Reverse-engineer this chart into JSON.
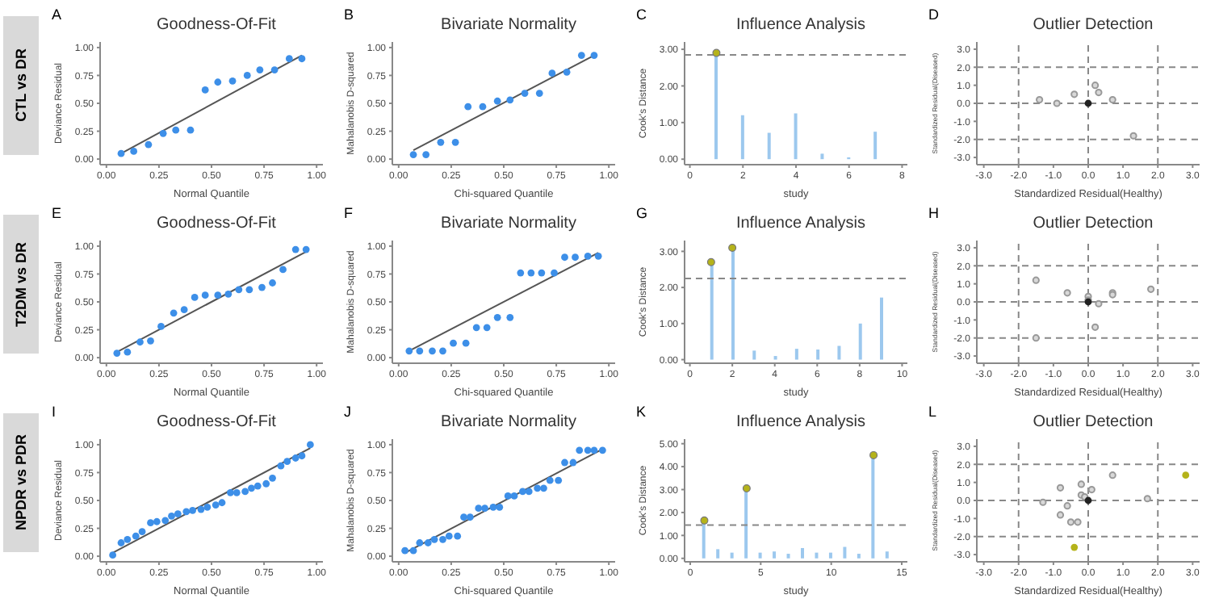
{
  "chart_data": [
    {
      "type": "scatter",
      "title": "Goodness-Of-Fit",
      "xlabel": "Normal Quantile",
      "ylabel": "Deviance Residual",
      "annotations": [
        "A",
        "CTL vs DR"
      ],
      "xlim": [
        -0.03,
        1.03
      ],
      "ylim": [
        -0.05,
        1.05
      ],
      "xticks": [
        {
          "value": 0,
          "label": "0.00"
        },
        {
          "value": 0.25,
          "label": "0.25"
        },
        {
          "value": 0.5,
          "label": "0.50"
        },
        {
          "value": 0.75,
          "label": "0.75"
        },
        {
          "value": 1,
          "label": "1.00"
        }
      ],
      "yticks": [
        {
          "value": 0,
          "label": "0.00"
        },
        {
          "value": 0.25,
          "label": "0.25"
        },
        {
          "value": 0.5,
          "label": "0.50"
        },
        {
          "value": 0.75,
          "label": "0.75"
        },
        {
          "value": 1,
          "label": "1.00"
        }
      ],
      "series": [
        {
          "type": "scatter",
          "marker": "circle",
          "color": "#3d8fe8",
          "x": [
            0.07,
            0.13,
            0.2,
            0.27,
            0.33,
            0.4,
            0.47,
            0.53,
            0.6,
            0.67,
            0.73,
            0.8,
            0.87,
            0.93
          ],
          "values": [
            0.05,
            0.07,
            0.13,
            0.23,
            0.26,
            0.26,
            0.62,
            0.69,
            0.7,
            0.75,
            0.8,
            0.8,
            0.9,
            0.9
          ]
        },
        {
          "type": "line",
          "color": "#555555",
          "x": [
            0.07,
            0.93
          ],
          "values": [
            0.05,
            0.93
          ]
        }
      ]
    },
    {
      "type": "scatter",
      "title": "Bivariate Normality",
      "xlabel": "Chi-squared Quantile",
      "ylabel": "Mahalanobis D-squared",
      "annotations": [
        "B"
      ],
      "xlim": [
        -0.03,
        1.03
      ],
      "ylim": [
        -0.05,
        1.05
      ],
      "xticks": [
        {
          "value": 0,
          "label": "0.00"
        },
        {
          "value": 0.25,
          "label": "0.25"
        },
        {
          "value": 0.5,
          "label": "0.50"
        },
        {
          "value": 0.75,
          "label": "0.75"
        },
        {
          "value": 1,
          "label": "1.00"
        }
      ],
      "yticks": [
        {
          "value": 0,
          "label": "0.00"
        },
        {
          "value": 0.25,
          "label": "0.25"
        },
        {
          "value": 0.5,
          "label": "0.50"
        },
        {
          "value": 0.75,
          "label": "0.75"
        },
        {
          "value": 1,
          "label": "1.00"
        }
      ],
      "series": [
        {
          "type": "scatter",
          "marker": "circle",
          "color": "#3d8fe8",
          "x": [
            0.07,
            0.13,
            0.2,
            0.27,
            0.33,
            0.4,
            0.47,
            0.53,
            0.6,
            0.67,
            0.73,
            0.8,
            0.87,
            0.93
          ],
          "values": [
            0.04,
            0.04,
            0.15,
            0.15,
            0.47,
            0.47,
            0.52,
            0.53,
            0.59,
            0.59,
            0.77,
            0.78,
            0.93,
            0.93
          ]
        },
        {
          "type": "line",
          "color": "#555555",
          "x": [
            0.07,
            0.93
          ],
          "values": [
            0.08,
            0.93
          ]
        }
      ]
    },
    {
      "type": "bar",
      "title": "Influence Analysis",
      "xlabel": "study",
      "ylabel": "Cook's Distance",
      "annotations": [
        "C"
      ],
      "xlim": [
        -0.2,
        8.2
      ],
      "ylim": [
        -0.15,
        3.2
      ],
      "xticks": [
        0,
        2,
        4,
        6,
        8
      ],
      "yticks": [
        {
          "value": 0,
          "label": "0.00"
        },
        {
          "value": 1,
          "label": "1.00"
        },
        {
          "value": 2,
          "label": "2.00"
        },
        {
          "value": 3,
          "label": "3.00"
        }
      ],
      "ref_lines": [
        {
          "axis": "y",
          "value": 2.85,
          "color": "#888888",
          "line_style": "dashed"
        }
      ],
      "series": [
        {
          "type": "bar",
          "color": "#9cc8ee",
          "x": [
            1,
            2,
            3,
            4,
            5,
            6,
            7
          ],
          "values": [
            2.9,
            1.2,
            0.72,
            1.25,
            0.15,
            0.05,
            0.75
          ]
        },
        {
          "type": "scatter",
          "marker": "circle",
          "color": "#b5b31a",
          "x": [
            1
          ],
          "values": [
            2.9
          ]
        }
      ]
    },
    {
      "type": "scatter",
      "title": "Outlier Detection",
      "xlabel": "Standardized Residual(Healthy)",
      "ylabel": "Standardized Residual(Diseased)",
      "annotations": [
        "D"
      ],
      "xlim": [
        -3.2,
        3.2
      ],
      "ylim": [
        -3.4,
        3.4
      ],
      "xticks": [
        {
          "value": -3,
          "label": "-3.0"
        },
        {
          "value": -2,
          "label": "-2.0"
        },
        {
          "value": -1,
          "label": "-1.0"
        },
        {
          "value": 0,
          "label": "0.0"
        },
        {
          "value": 1,
          "label": "1.0"
        },
        {
          "value": 2,
          "label": "2.0"
        },
        {
          "value": 3,
          "label": "3.0"
        }
      ],
      "yticks": [
        {
          "value": -3,
          "label": "-3.0"
        },
        {
          "value": -2,
          "label": "-2.0"
        },
        {
          "value": -1,
          "label": "-1.0"
        },
        {
          "value": 0,
          "label": "0.0"
        },
        {
          "value": 1,
          "label": "1.0"
        },
        {
          "value": 2,
          "label": "2.0"
        },
        {
          "value": 3,
          "label": "3.0"
        }
      ],
      "ref_lines": [
        {
          "axis": "x",
          "value": -2,
          "color": "#888888",
          "line_style": "dashed"
        },
        {
          "axis": "x",
          "value": 0,
          "color": "#888888",
          "line_style": "dashed"
        },
        {
          "axis": "x",
          "value": 2,
          "color": "#888888",
          "line_style": "dashed"
        },
        {
          "axis": "y",
          "value": -2,
          "color": "#888888",
          "line_style": "dashed"
        },
        {
          "axis": "y",
          "value": 0,
          "color": "#888888",
          "line_style": "dashed"
        },
        {
          "axis": "y",
          "value": 2,
          "color": "#888888",
          "line_style": "dashed"
        }
      ],
      "series": [
        {
          "type": "scatter",
          "marker": "circle",
          "color": "#999999",
          "x": [
            -1.4,
            -0.9,
            -0.4,
            0.2,
            0.3,
            0.7,
            1.3
          ],
          "values": [
            0.2,
            0,
            0.5,
            1.0,
            0.6,
            0.2,
            -1.8
          ]
        },
        {
          "type": "scatter",
          "marker": "circle",
          "color": "#222222",
          "x": [
            0
          ],
          "values": [
            0
          ]
        }
      ]
    },
    {
      "type": "scatter",
      "title": "Goodness-Of-Fit",
      "xlabel": "Normal Quantile",
      "ylabel": "Deviance Residual",
      "annotations": [
        "E",
        "T2DM vs DR"
      ],
      "xlim": [
        -0.03,
        1.03
      ],
      "ylim": [
        -0.05,
        1.05
      ],
      "xticks": [
        {
          "value": 0,
          "label": "0.00"
        },
        {
          "value": 0.25,
          "label": "0.25"
        },
        {
          "value": 0.5,
          "label": "0.50"
        },
        {
          "value": 0.75,
          "label": "0.75"
        },
        {
          "value": 1,
          "label": "1.00"
        }
      ],
      "yticks": [
        {
          "value": 0,
          "label": "0.00"
        },
        {
          "value": 0.25,
          "label": "0.25"
        },
        {
          "value": 0.5,
          "label": "0.50"
        },
        {
          "value": 0.75,
          "label": "0.75"
        },
        {
          "value": 1,
          "label": "1.00"
        }
      ],
      "series": [
        {
          "type": "scatter",
          "marker": "circle",
          "color": "#3d8fe8",
          "x": [
            0.05,
            0.1,
            0.16,
            0.21,
            0.26,
            0.32,
            0.37,
            0.42,
            0.47,
            0.53,
            0.58,
            0.63,
            0.68,
            0.74,
            0.79,
            0.84,
            0.9,
            0.95
          ],
          "values": [
            0.04,
            0.05,
            0.14,
            0.15,
            0.28,
            0.4,
            0.43,
            0.54,
            0.56,
            0.56,
            0.57,
            0.61,
            0.61,
            0.63,
            0.67,
            0.79,
            0.97,
            0.97
          ]
        },
        {
          "type": "line",
          "color": "#555555",
          "x": [
            0.05,
            0.95
          ],
          "values": [
            0.05,
            0.95
          ]
        }
      ]
    },
    {
      "type": "scatter",
      "title": "Bivariate Normality",
      "xlabel": "Chi-squared Quantile",
      "ylabel": "Mahalanobis D-squared",
      "annotations": [
        "F"
      ],
      "xlim": [
        -0.03,
        1.03
      ],
      "ylim": [
        -0.05,
        1.05
      ],
      "xticks": [
        {
          "value": 0,
          "label": "0.00"
        },
        {
          "value": 0.25,
          "label": "0.25"
        },
        {
          "value": 0.5,
          "label": "0.50"
        },
        {
          "value": 0.75,
          "label": "0.75"
        },
        {
          "value": 1,
          "label": "1.00"
        }
      ],
      "yticks": [
        {
          "value": 0,
          "label": "0.00"
        },
        {
          "value": 0.25,
          "label": "0.25"
        },
        {
          "value": 0.5,
          "label": "0.50"
        },
        {
          "value": 0.75,
          "label": "0.75"
        },
        {
          "value": 1,
          "label": "1.00"
        }
      ],
      "series": [
        {
          "type": "scatter",
          "marker": "circle",
          "color": "#3d8fe8",
          "x": [
            0.05,
            0.1,
            0.16,
            0.21,
            0.26,
            0.32,
            0.37,
            0.42,
            0.47,
            0.53,
            0.58,
            0.63,
            0.68,
            0.74,
            0.79,
            0.84,
            0.9,
            0.95
          ],
          "values": [
            0.06,
            0.06,
            0.06,
            0.06,
            0.13,
            0.13,
            0.27,
            0.27,
            0.36,
            0.36,
            0.76,
            0.76,
            0.76,
            0.76,
            0.9,
            0.9,
            0.91,
            0.91
          ]
        },
        {
          "type": "line",
          "color": "#555555",
          "x": [
            0.05,
            0.95
          ],
          "values": [
            0.06,
            0.94
          ]
        }
      ]
    },
    {
      "type": "bar",
      "title": "Influence Analysis",
      "xlabel": "study",
      "ylabel": "Cook's Distance",
      "annotations": [
        "G"
      ],
      "xlim": [
        -0.25,
        10.25
      ],
      "ylim": [
        -0.1,
        3.3
      ],
      "xticks": [
        0,
        2,
        4,
        6,
        8,
        10
      ],
      "yticks": [
        {
          "value": 0,
          "label": "0.00"
        },
        {
          "value": 1,
          "label": "1.00"
        },
        {
          "value": 2,
          "label": "2.00"
        },
        {
          "value": 3,
          "label": "3.00"
        }
      ],
      "ref_lines": [
        {
          "axis": "y",
          "value": 2.25,
          "color": "#888888",
          "line_style": "dashed"
        }
      ],
      "series": [
        {
          "type": "bar",
          "color": "#9cc8ee",
          "x": [
            1,
            2,
            3,
            4,
            5,
            6,
            7,
            8,
            9
          ],
          "values": [
            2.7,
            3.1,
            0.25,
            0.1,
            0.3,
            0.28,
            0.38,
            1.0,
            1.72
          ]
        },
        {
          "type": "scatter",
          "marker": "circle",
          "color": "#b5b31a",
          "x": [
            1,
            2
          ],
          "values": [
            2.7,
            3.1
          ]
        }
      ]
    },
    {
      "type": "scatter",
      "title": "Outlier Detection",
      "xlabel": "Standardized Residual(Healthy)",
      "ylabel": "Standardized Residual(Diseased)",
      "annotations": [
        "H"
      ],
      "xlim": [
        -3.2,
        3.2
      ],
      "ylim": [
        -3.4,
        3.4
      ],
      "xticks": [
        {
          "value": -3,
          "label": "-3.0"
        },
        {
          "value": -2,
          "label": "-2.0"
        },
        {
          "value": -1,
          "label": "-1.0"
        },
        {
          "value": 0,
          "label": "0.0"
        },
        {
          "value": 1,
          "label": "1.0"
        },
        {
          "value": 2,
          "label": "2.0"
        },
        {
          "value": 3,
          "label": "3.0"
        }
      ],
      "yticks": [
        {
          "value": -3,
          "label": "-3.0"
        },
        {
          "value": -2,
          "label": "-2.0"
        },
        {
          "value": -1,
          "label": "-1.0"
        },
        {
          "value": 0,
          "label": "0.0"
        },
        {
          "value": 1,
          "label": "1.0"
        },
        {
          "value": 2,
          "label": "2.0"
        },
        {
          "value": 3,
          "label": "3.0"
        }
      ],
      "ref_lines": [
        {
          "axis": "x",
          "value": -2,
          "color": "#888888",
          "line_style": "dashed"
        },
        {
          "axis": "x",
          "value": 0,
          "color": "#888888",
          "line_style": "dashed"
        },
        {
          "axis": "x",
          "value": 2,
          "color": "#888888",
          "line_style": "dashed"
        },
        {
          "axis": "y",
          "value": -2,
          "color": "#888888",
          "line_style": "dashed"
        },
        {
          "axis": "y",
          "value": 0,
          "color": "#888888",
          "line_style": "dashed"
        },
        {
          "axis": "y",
          "value": 2,
          "color": "#888888",
          "line_style": "dashed"
        }
      ],
      "series": [
        {
          "type": "scatter",
          "marker": "circle",
          "color": "#999999",
          "x": [
            -1.5,
            -1.5,
            -0.6,
            0,
            0,
            0.3,
            0.2,
            0.7,
            0.7,
            1.8
          ],
          "values": [
            1.2,
            -2.0,
            0.5,
            0.3,
            0.1,
            -0.1,
            -1.4,
            0.5,
            0.4,
            0.7
          ]
        },
        {
          "type": "scatter",
          "marker": "circle",
          "color": "#222222",
          "x": [
            0
          ],
          "values": [
            0
          ]
        }
      ]
    },
    {
      "type": "scatter",
      "title": "Goodness-Of-Fit",
      "xlabel": "Normal Quantile",
      "ylabel": "Deviance Residual",
      "annotations": [
        "I",
        "NPDR vs PDR"
      ],
      "xlim": [
        -0.03,
        1.03
      ],
      "ylim": [
        -0.05,
        1.05
      ],
      "xticks": [
        {
          "value": 0,
          "label": "0.00"
        },
        {
          "value": 0.25,
          "label": "0.25"
        },
        {
          "value": 0.5,
          "label": "0.50"
        },
        {
          "value": 0.75,
          "label": "0.75"
        },
        {
          "value": 1,
          "label": "1.00"
        }
      ],
      "yticks": [
        {
          "value": 0,
          "label": "0.00"
        },
        {
          "value": 0.25,
          "label": "0.25"
        },
        {
          "value": 0.5,
          "label": "0.50"
        },
        {
          "value": 0.75,
          "label": "0.75"
        },
        {
          "value": 1,
          "label": "1.00"
        }
      ],
      "series": [
        {
          "type": "scatter",
          "marker": "circle",
          "color": "#3d8fe8",
          "x": [
            0.03,
            0.07,
            0.1,
            0.14,
            0.17,
            0.21,
            0.24,
            0.28,
            0.31,
            0.34,
            0.38,
            0.41,
            0.45,
            0.48,
            0.52,
            0.55,
            0.59,
            0.62,
            0.66,
            0.69,
            0.72,
            0.76,
            0.79,
            0.83,
            0.86,
            0.9,
            0.93,
            0.97
          ],
          "values": [
            0.01,
            0.12,
            0.15,
            0.18,
            0.22,
            0.3,
            0.31,
            0.32,
            0.36,
            0.38,
            0.4,
            0.41,
            0.42,
            0.44,
            0.46,
            0.48,
            0.57,
            0.57,
            0.58,
            0.61,
            0.63,
            0.65,
            0.7,
            0.81,
            0.85,
            0.88,
            0.9,
            1.0
          ]
        },
        {
          "type": "line",
          "color": "#555555",
          "x": [
            0.03,
            0.97
          ],
          "values": [
            0.03,
            0.97
          ]
        }
      ]
    },
    {
      "type": "scatter",
      "title": "Bivariate Normality",
      "xlabel": "Chi-squared Quantile",
      "ylabel": "Mahalanobis D-squared",
      "annotations": [
        "J"
      ],
      "xlim": [
        -0.03,
        1.03
      ],
      "ylim": [
        -0.05,
        1.05
      ],
      "xticks": [
        {
          "value": 0,
          "label": "0.00"
        },
        {
          "value": 0.25,
          "label": "0.25"
        },
        {
          "value": 0.5,
          "label": "0.50"
        },
        {
          "value": 0.75,
          "label": "0.75"
        },
        {
          "value": 1,
          "label": "1.00"
        }
      ],
      "yticks": [
        {
          "value": 0,
          "label": "0.00"
        },
        {
          "value": 0.25,
          "label": "0.25"
        },
        {
          "value": 0.5,
          "label": "0.50"
        },
        {
          "value": 0.75,
          "label": "0.75"
        },
        {
          "value": 1,
          "label": "1.00"
        }
      ],
      "series": [
        {
          "type": "scatter",
          "marker": "circle",
          "color": "#3d8fe8",
          "x": [
            0.03,
            0.07,
            0.1,
            0.14,
            0.17,
            0.21,
            0.24,
            0.28,
            0.31,
            0.34,
            0.38,
            0.41,
            0.45,
            0.48,
            0.52,
            0.55,
            0.59,
            0.62,
            0.66,
            0.69,
            0.72,
            0.76,
            0.79,
            0.83,
            0.86,
            0.9,
            0.93,
            0.97
          ],
          "values": [
            0.05,
            0.05,
            0.12,
            0.12,
            0.15,
            0.15,
            0.18,
            0.18,
            0.35,
            0.35,
            0.43,
            0.43,
            0.44,
            0.44,
            0.54,
            0.54,
            0.58,
            0.58,
            0.61,
            0.61,
            0.68,
            0.68,
            0.84,
            0.84,
            0.95,
            0.95,
            0.95,
            0.95
          ]
        },
        {
          "type": "line",
          "color": "#555555",
          "x": [
            0.03,
            0.97
          ],
          "values": [
            0.03,
            0.96
          ]
        }
      ]
    },
    {
      "type": "bar",
      "title": "Influence Analysis",
      "xlabel": "study",
      "ylabel": "Cook's Distance",
      "annotations": [
        "K"
      ],
      "xlim": [
        -0.4,
        15.4
      ],
      "ylim": [
        -0.15,
        5.2
      ],
      "xticks": [
        0,
        5,
        10,
        15
      ],
      "yticks": [
        {
          "value": 0,
          "label": "0.00"
        },
        {
          "value": 1,
          "label": "1.00"
        },
        {
          "value": 2,
          "label": "2.00"
        },
        {
          "value": 3,
          "label": "3.00"
        },
        {
          "value": 4,
          "label": "4.00"
        },
        {
          "value": 5,
          "label": "5.00"
        }
      ],
      "ref_lines": [
        {
          "axis": "y",
          "value": 1.45,
          "color": "#888888",
          "line_style": "dashed"
        }
      ],
      "series": [
        {
          "type": "bar",
          "color": "#9cc8ee",
          "x": [
            1,
            2,
            3,
            4,
            5,
            6,
            7,
            8,
            9,
            10,
            11,
            12,
            13,
            14
          ],
          "values": [
            1.65,
            0.4,
            0.25,
            3.05,
            0.25,
            0.3,
            0.2,
            0.45,
            0.25,
            0.25,
            0.5,
            0.2,
            4.5,
            0.3
          ]
        },
        {
          "type": "scatter",
          "marker": "circle",
          "color": "#b5b31a",
          "x": [
            1,
            4,
            13
          ],
          "values": [
            1.65,
            3.05,
            4.5
          ]
        }
      ]
    },
    {
      "type": "scatter",
      "title": "Outlier Detection",
      "xlabel": "Standardized Residual(Healthy)",
      "ylabel": "Standardized Residual(Diseased)",
      "annotations": [
        "L"
      ],
      "xlim": [
        -3.2,
        3.2
      ],
      "ylim": [
        -3.4,
        3.4
      ],
      "xticks": [
        {
          "value": -3,
          "label": "-3.0"
        },
        {
          "value": -2,
          "label": "-2.0"
        },
        {
          "value": -1,
          "label": "-1.0"
        },
        {
          "value": 0,
          "label": "0.0"
        },
        {
          "value": 1,
          "label": "1.0"
        },
        {
          "value": 2,
          "label": "2.0"
        },
        {
          "value": 3,
          "label": "3.0"
        }
      ],
      "yticks": [
        {
          "value": -3,
          "label": "-3.0"
        },
        {
          "value": -2,
          "label": "-2.0"
        },
        {
          "value": -1,
          "label": "-1.0"
        },
        {
          "value": 0,
          "label": "0.0"
        },
        {
          "value": 1,
          "label": "1.0"
        },
        {
          "value": 2,
          "label": "2.0"
        },
        {
          "value": 3,
          "label": "3.0"
        }
      ],
      "ref_lines": [
        {
          "axis": "x",
          "value": -2,
          "color": "#888888",
          "line_style": "dashed"
        },
        {
          "axis": "x",
          "value": 0,
          "color": "#888888",
          "line_style": "dashed"
        },
        {
          "axis": "x",
          "value": 2,
          "color": "#888888",
          "line_style": "dashed"
        },
        {
          "axis": "y",
          "value": -2,
          "color": "#888888",
          "line_style": "dashed"
        },
        {
          "axis": "y",
          "value": 0,
          "color": "#888888",
          "line_style": "dashed"
        },
        {
          "axis": "y",
          "value": 2,
          "color": "#888888",
          "line_style": "dashed"
        }
      ],
      "series": [
        {
          "type": "scatter",
          "marker": "circle",
          "color": "#999999",
          "x": [
            -1.3,
            -0.8,
            -0.8,
            -0.6,
            -0.5,
            -0.3,
            -0.2,
            -0.2,
            -0.1,
            0.1,
            0.7,
            1.7
          ],
          "values": [
            -0.1,
            0.7,
            -0.8,
            -0.3,
            -1.2,
            -1.2,
            0.9,
            0.3,
            0.2,
            0.6,
            1.4,
            0.1
          ]
        },
        {
          "type": "scatter",
          "marker": "circle",
          "color": "#222222",
          "x": [
            0
          ],
          "values": [
            0
          ]
        },
        {
          "type": "scatter",
          "marker": "circle",
          "color": "#b5b31a",
          "x": [
            2.8,
            -0.4
          ],
          "values": [
            1.4,
            -2.6
          ]
        }
      ]
    }
  ]
}
